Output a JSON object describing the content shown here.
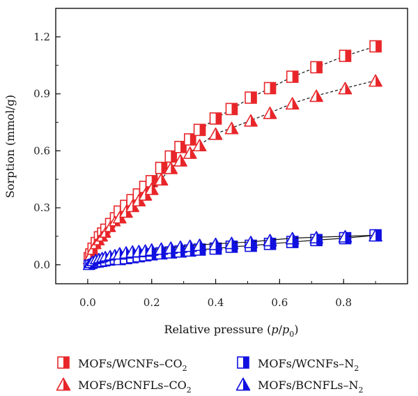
{
  "chart_data": {
    "type": "scatter",
    "xlabel": {
      "pre": "Relative pressure (",
      "p": "p",
      "slash": "/",
      "p0": "p",
      "sub": "0",
      "post": ")"
    },
    "ylabel": "Sorption (mmol/g)",
    "xlim": [
      -0.1,
      1.0
    ],
    "ylim": [
      -0.1,
      1.35
    ],
    "xticks": [
      0.0,
      0.2,
      0.4,
      0.6,
      0.8
    ],
    "xtick_labels": [
      "0.0",
      "0.2",
      "0.4",
      "0.6",
      "0.8"
    ],
    "yticks": [
      0.0,
      0.3,
      0.6,
      0.9,
      1.2
    ],
    "ytick_labels": [
      "0.0",
      "0.3",
      "0.6",
      "0.9",
      "1.2"
    ],
    "grid": false,
    "legend_position": "bottom",
    "series": [
      {
        "name": "MOFs/WCNFs–CO2",
        "label_main": "MOFs/WCNFs–CO",
        "label_sub": "2",
        "marker": "square-half",
        "color": "#e8262a",
        "x": [
          0.003,
          0.008,
          0.015,
          0.025,
          0.035,
          0.045,
          0.055,
          0.07,
          0.085,
          0.1,
          0.12,
          0.14,
          0.16,
          0.18,
          0.2,
          0.23,
          0.26,
          0.29,
          0.32,
          0.35,
          0.4,
          0.45,
          0.51,
          0.57,
          0.64,
          0.715,
          0.805,
          0.9
        ],
        "y": [
          0.04,
          0.06,
          0.09,
          0.12,
          0.15,
          0.17,
          0.19,
          0.22,
          0.25,
          0.28,
          0.31,
          0.34,
          0.37,
          0.41,
          0.44,
          0.51,
          0.57,
          0.62,
          0.66,
          0.71,
          0.77,
          0.82,
          0.88,
          0.93,
          0.99,
          1.04,
          1.1,
          1.15
        ]
      },
      {
        "name": "MOFs/BCNFLs–CO2",
        "label_main": "MOFs/BCNFLs–CO",
        "label_sub": "2",
        "marker": "triangle-half",
        "color": "#e8262a",
        "x": [
          0.003,
          0.008,
          0.015,
          0.025,
          0.035,
          0.045,
          0.055,
          0.07,
          0.085,
          0.1,
          0.12,
          0.14,
          0.16,
          0.18,
          0.2,
          0.23,
          0.26,
          0.29,
          0.32,
          0.35,
          0.4,
          0.45,
          0.51,
          0.57,
          0.64,
          0.715,
          0.805,
          0.9
        ],
        "y": [
          0.03,
          0.05,
          0.08,
          0.11,
          0.13,
          0.15,
          0.17,
          0.2,
          0.23,
          0.25,
          0.28,
          0.31,
          0.34,
          0.37,
          0.4,
          0.45,
          0.51,
          0.55,
          0.59,
          0.63,
          0.69,
          0.72,
          0.76,
          0.8,
          0.85,
          0.89,
          0.93,
          0.97
        ]
      },
      {
        "name": "MOFs/WCNFs–N2",
        "label_main": "MOFs/WCNFs–N",
        "label_sub": "2",
        "marker": "square-half",
        "color": "#1010e0",
        "x": [
          0.003,
          0.008,
          0.015,
          0.025,
          0.035,
          0.045,
          0.055,
          0.07,
          0.085,
          0.1,
          0.12,
          0.14,
          0.16,
          0.18,
          0.2,
          0.23,
          0.26,
          0.29,
          0.32,
          0.35,
          0.4,
          0.45,
          0.51,
          0.57,
          0.64,
          0.715,
          0.805,
          0.9
        ],
        "y": [
          0.0,
          0.0,
          0.005,
          0.01,
          0.012,
          0.015,
          0.018,
          0.022,
          0.027,
          0.03,
          0.035,
          0.04,
          0.045,
          0.05,
          0.055,
          0.06,
          0.065,
          0.07,
          0.075,
          0.08,
          0.085,
          0.095,
          0.1,
          0.11,
          0.12,
          0.13,
          0.14,
          0.155
        ]
      },
      {
        "name": "MOFs/BCNFLs–N2",
        "label_main": "MOFs/BCNFLs–N",
        "label_sub": "2",
        "marker": "triangle-half",
        "color": "#1010e0",
        "x": [
          0.003,
          0.008,
          0.015,
          0.025,
          0.035,
          0.045,
          0.055,
          0.07,
          0.085,
          0.1,
          0.12,
          0.14,
          0.16,
          0.18,
          0.2,
          0.23,
          0.26,
          0.29,
          0.32,
          0.35,
          0.4,
          0.45,
          0.51,
          0.57,
          0.64,
          0.715,
          0.805,
          0.9
        ],
        "y": [
          0.0,
          0.01,
          0.02,
          0.03,
          0.035,
          0.04,
          0.045,
          0.05,
          0.055,
          0.06,
          0.065,
          0.07,
          0.072,
          0.075,
          0.08,
          0.085,
          0.09,
          0.095,
          0.1,
          0.105,
          0.11,
          0.115,
          0.12,
          0.13,
          0.14,
          0.145,
          0.15,
          0.155
        ]
      }
    ]
  }
}
